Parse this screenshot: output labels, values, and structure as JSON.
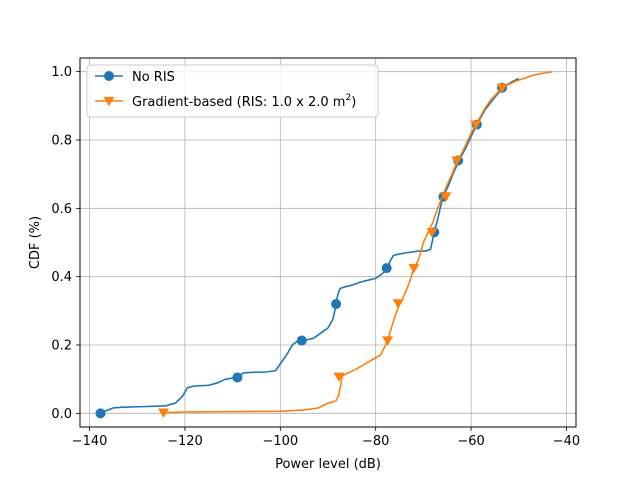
{
  "chart_data": {
    "type": "line",
    "title": "",
    "xlabel": "Power level (dB)",
    "ylabel": "CDF (%)",
    "xlim": [
      -142,
      -38
    ],
    "ylim": [
      -0.04,
      1.04
    ],
    "xticks": [
      -140,
      -120,
      -100,
      -80,
      -60,
      -40
    ],
    "xtick_labels": [
      "−140",
      "−120",
      "−100",
      "−80",
      "−60",
      "−40"
    ],
    "yticks": [
      0.0,
      0.2,
      0.4,
      0.6,
      0.8,
      1.0
    ],
    "ytick_labels": [
      "0.0",
      "0.2",
      "0.4",
      "0.6",
      "0.8",
      "1.0"
    ],
    "grid": true,
    "legend_position": "top-left",
    "series": [
      {
        "name": "No RIS",
        "legend_main": "No RIS",
        "color": "#1f77b4",
        "marker": "circle",
        "x": [
          -137.7,
          -136.5,
          -135,
          -133,
          -128,
          -124,
          -122,
          -120.5,
          -119.5,
          -118,
          -115,
          -113,
          -111.5,
          -109,
          -107.8,
          -106,
          -103,
          -101,
          -99.5,
          -98.5,
          -97.5,
          -96.5,
          -95.5,
          -94.5,
          -93,
          -91.5,
          -90,
          -89,
          -88.3,
          -88,
          -87.5,
          -86.5,
          -85,
          -83,
          -81.5,
          -80,
          -78.5,
          -77.7,
          -77,
          -76.3,
          -75.5,
          -73.5,
          -71,
          -69.5,
          -68.5,
          -67.7,
          -66.8,
          -66,
          -64.8,
          -63.5,
          -62.5,
          -61,
          -59,
          -57,
          -55,
          -53.5,
          -51.5,
          -50
        ],
        "y": [
          0.0,
          0.008,
          0.016,
          0.018,
          0.02,
          0.022,
          0.03,
          0.05,
          0.075,
          0.08,
          0.082,
          0.09,
          0.1,
          0.105,
          0.118,
          0.12,
          0.121,
          0.125,
          0.155,
          0.175,
          0.2,
          0.21,
          0.21,
          0.215,
          0.22,
          0.235,
          0.25,
          0.275,
          0.316,
          0.345,
          0.365,
          0.37,
          0.375,
          0.385,
          0.39,
          0.395,
          0.41,
          0.42,
          0.445,
          0.462,
          0.465,
          0.47,
          0.475,
          0.475,
          0.48,
          0.53,
          0.58,
          0.63,
          0.665,
          0.71,
          0.74,
          0.78,
          0.84,
          0.89,
          0.925,
          0.95,
          0.97,
          0.98
        ],
        "marker_x": [
          -137.7,
          -109,
          -95.5,
          -88.3,
          -77.7,
          -67.7,
          -65.8,
          -62.7,
          -58.8,
          -53.5
        ],
        "marker_y": [
          0.0,
          0.105,
          0.213,
          0.32,
          0.425,
          0.53,
          0.634,
          0.74,
          0.845,
          0.953
        ]
      },
      {
        "name": "Gradient-based (RIS: 1.0 x 2.0 m2)",
        "legend_main": "Gradient-based (RIS: 1.0 x 2.0 m",
        "legend_sup": "2",
        "legend_close": ")",
        "color": "#ff7f0e",
        "marker": "triangle-down",
        "x": [
          -124.5,
          -120,
          -110,
          -100,
          -95,
          -92,
          -90,
          -89,
          -88.3,
          -87.7,
          -87,
          -84,
          -81,
          -79,
          -77.5,
          -76.5,
          -75.3,
          -74.5,
          -73,
          -72,
          -71,
          -70,
          -69,
          -68,
          -67,
          -66,
          -65,
          -64,
          -63,
          -62,
          -61,
          -60,
          -59,
          -58,
          -57,
          -56,
          -55,
          -54,
          -53.2,
          -51,
          -49,
          -47,
          -45,
          -43
        ],
        "y": [
          0.002,
          0.004,
          0.005,
          0.006,
          0.01,
          0.016,
          0.03,
          0.033,
          0.037,
          0.055,
          0.11,
          0.13,
          0.155,
          0.17,
          0.212,
          0.26,
          0.31,
          0.33,
          0.38,
          0.425,
          0.45,
          0.5,
          0.53,
          0.56,
          0.6,
          0.635,
          0.67,
          0.7,
          0.735,
          0.76,
          0.79,
          0.82,
          0.845,
          0.87,
          0.895,
          0.915,
          0.93,
          0.945,
          0.955,
          0.97,
          0.98,
          0.99,
          0.995,
          1.0
        ],
        "marker_x": [
          -124.5,
          -87.7,
          -77.5,
          -75.3,
          -72,
          -68.2,
          -65.3,
          -63,
          -59,
          -53.5
        ],
        "marker_y": [
          0.002,
          0.107,
          0.213,
          0.322,
          0.425,
          0.53,
          0.635,
          0.74,
          0.845,
          0.953
        ]
      }
    ]
  }
}
